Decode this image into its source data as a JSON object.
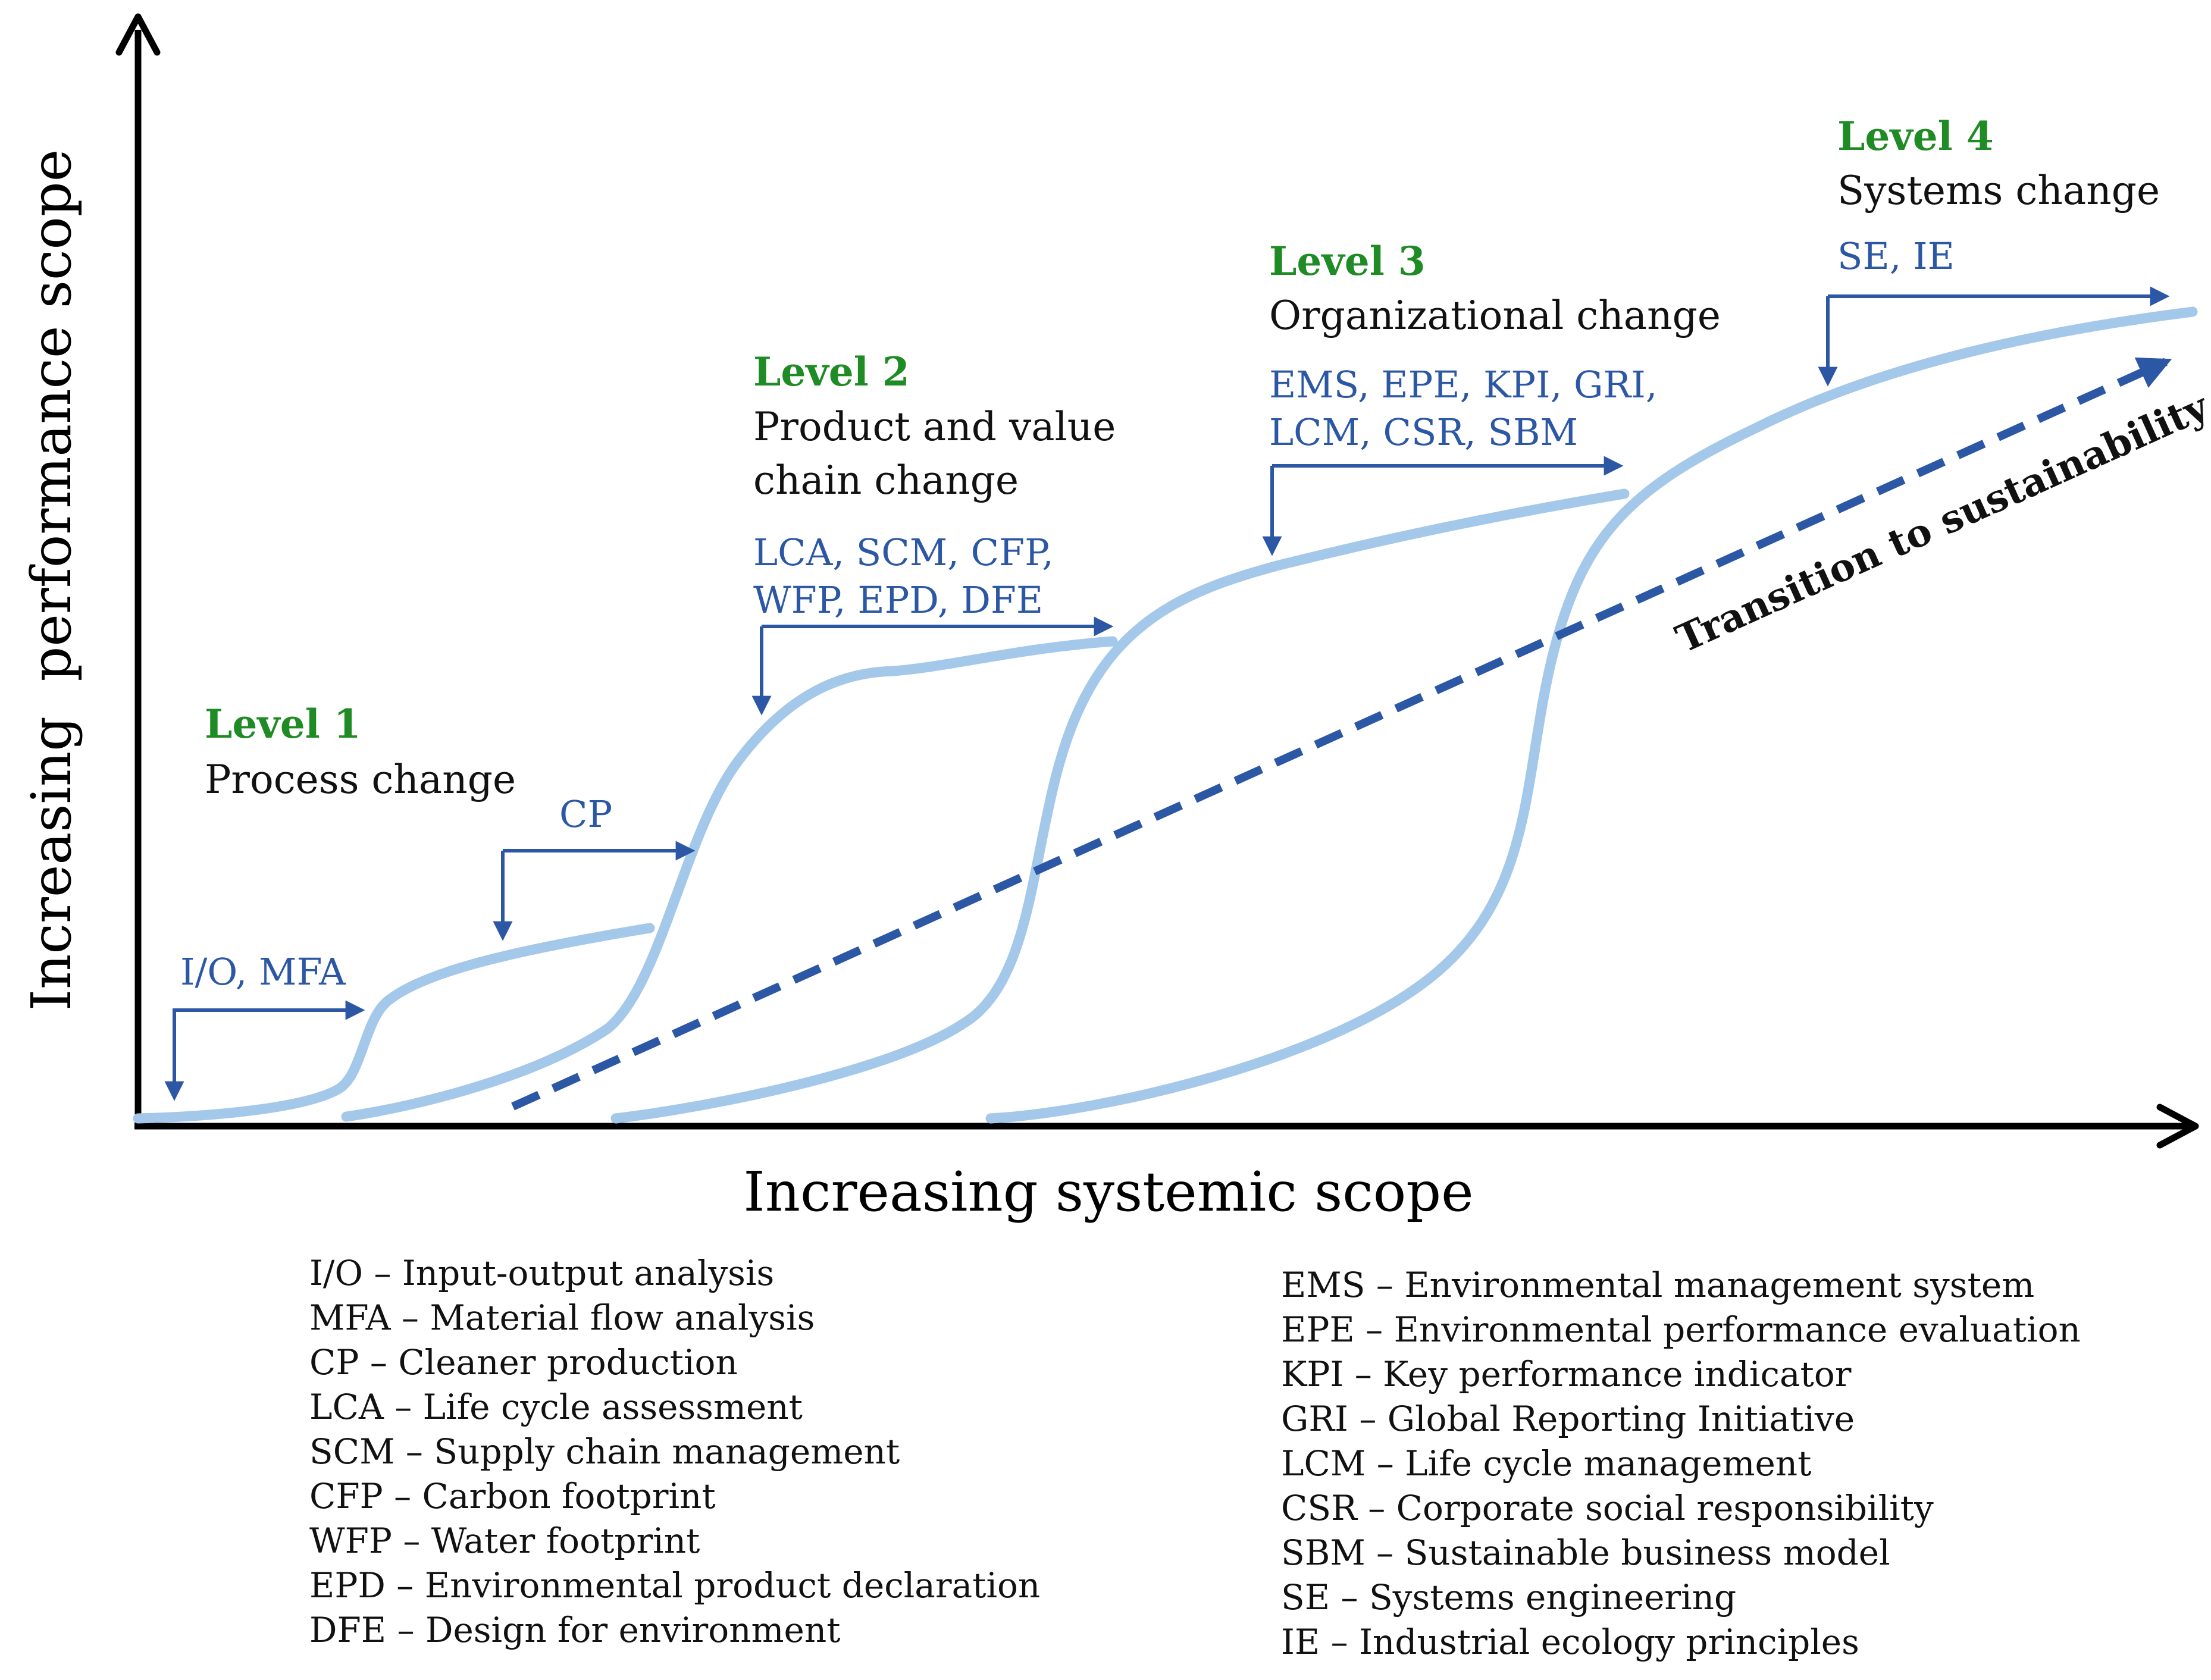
{
  "axes": {
    "x_label": "Increasing systemic scope",
    "y_label": "Increasing  performance scope"
  },
  "colors": {
    "level_title": "#1f8b24",
    "tool_text": "#2b57a5",
    "curve": "#a4c8ea",
    "transition_line": "#2b57a5",
    "axis": "#000000"
  },
  "levels": [
    {
      "title": "Level 1",
      "subtitle": [
        "Process change"
      ]
    },
    {
      "title": "Level 2",
      "subtitle": [
        "Product and value",
        "chain change"
      ]
    },
    {
      "title": "Level 3",
      "subtitle": [
        "Organizational change"
      ]
    },
    {
      "title": "Level 4",
      "subtitle": [
        "Systems change"
      ]
    }
  ],
  "tools": {
    "io_mfa": "I/O, MFA",
    "cp": "CP",
    "level2_line1": "LCA, SCM, CFP,",
    "level2_line2": "WFP, EPD, DFE",
    "level3_line1": "EMS, EPE, KPI, GRI,",
    "level3_line2": "LCM, CSR, SBM",
    "level4": "SE, IE"
  },
  "transition_label": "Transition to sustainability",
  "legend": {
    "left": [
      "I/O – Input-output analysis",
      "MFA – Material flow analysis",
      "CP – Cleaner production",
      "LCA – Life cycle assessment",
      "SCM – Supply chain management",
      "CFP – Carbon footprint",
      "WFP – Water footprint",
      "EPD – Environmental product declaration",
      "DFE – Design for environment"
    ],
    "right": [
      "EMS – Environmental management system",
      "EPE – Environmental performance evaluation",
      "KPI – Key performance indicator",
      "GRI – Global Reporting Initiative",
      "LCM – Life cycle management",
      "CSR – Corporate social responsibility",
      "SBM – Sustainable business model",
      "SE – Systems engineering",
      "IE – Industrial ecology principles"
    ]
  }
}
